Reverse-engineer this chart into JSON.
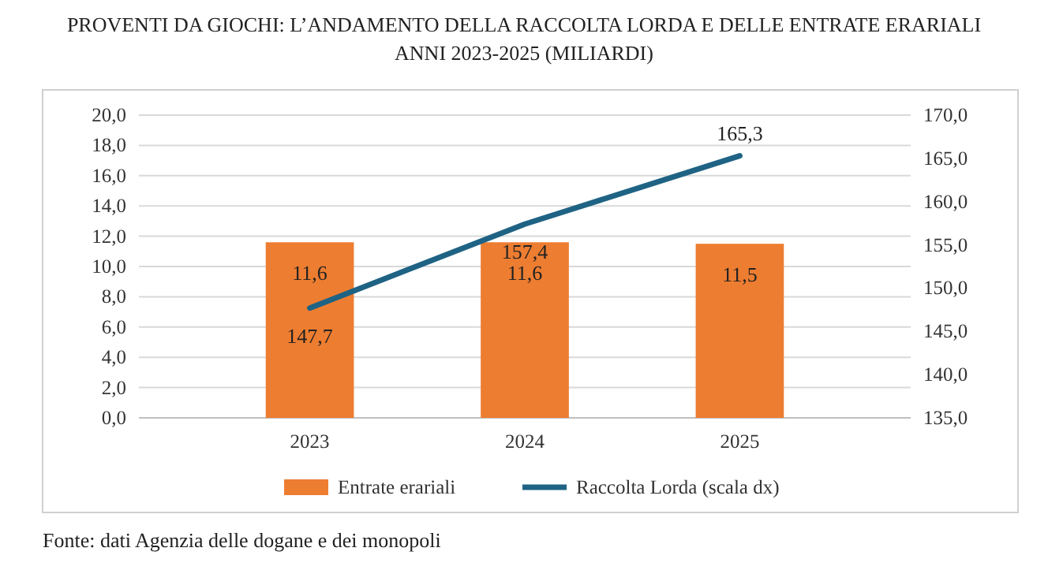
{
  "chart_data": {
    "type": "bar",
    "title": "PROVENTI DA GIOCHI: L’ANDAMENTO DELLA RACCOLTA LORDA E DELLE ENTRATE ERARIALI",
    "subtitle": "ANNI 2023-2025 (MILIARDI)",
    "categories": [
      "2023",
      "2024",
      "2025"
    ],
    "series": [
      {
        "name": "Entrate erariali",
        "color": "#ed7d31",
        "values": [
          11.6,
          11.6,
          11.5
        ],
        "value_labels": [
          "11,6",
          "11,6",
          "11,5"
        ]
      },
      {
        "name": "Raccolta Lorda (scala dx)",
        "type": "line",
        "axis": "y2",
        "color": "#1f6384",
        "values": [
          147.7,
          157.4,
          165.3
        ],
        "value_labels": [
          "147,7",
          "157,4",
          "165,3"
        ]
      }
    ],
    "ylim": [
      0,
      20
    ],
    "yticks": [
      {
        "value": 0,
        "label": "0,0"
      },
      {
        "value": 2,
        "label": "2,0"
      },
      {
        "value": 4,
        "label": "4,0"
      },
      {
        "value": 6,
        "label": "6,0"
      },
      {
        "value": 8,
        "label": "8,0"
      },
      {
        "value": 10,
        "label": "10,0"
      },
      {
        "value": 12,
        "label": "12,0"
      },
      {
        "value": 14,
        "label": "14,0"
      },
      {
        "value": 16,
        "label": "16,0"
      },
      {
        "value": 18,
        "label": "18,0"
      },
      {
        "value": 20,
        "label": "20,0"
      }
    ],
    "y2lim": [
      135,
      170
    ],
    "y2ticks": [
      {
        "value": 135,
        "label": "135,0"
      },
      {
        "value": 140,
        "label": "140,0"
      },
      {
        "value": 145,
        "label": "145,0"
      },
      {
        "value": 150,
        "label": "150,0"
      },
      {
        "value": 155,
        "label": "155,0"
      },
      {
        "value": 160,
        "label": "160,0"
      },
      {
        "value": 165,
        "label": "165,0"
      },
      {
        "value": 170,
        "label": "170,0"
      }
    ],
    "grid": "y",
    "legend": "bottom",
    "marker": "none",
    "line_style": "solid",
    "annotations": [
      "Fonte: dati Agenzia delle dogane e dei monopoli"
    ]
  }
}
